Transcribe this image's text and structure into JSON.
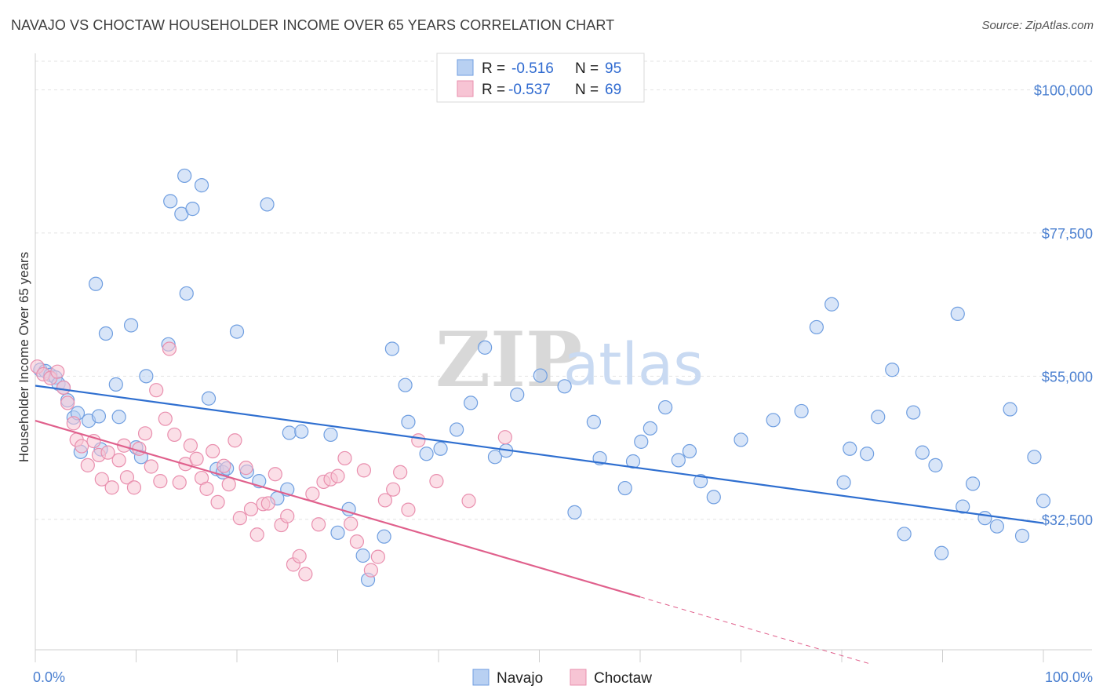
{
  "title": "NAVAJO VS CHOCTAW HOUSEHOLDER INCOME OVER 65 YEARS CORRELATION CHART",
  "source": "Source: ZipAtlas.com",
  "watermark": {
    "zip": "ZIP",
    "atlas": "atlas"
  },
  "colors": {
    "navajo_fill": "#b8d0f2",
    "navajo_stroke": "#6f9ee0",
    "navajo_line": "#2f6fd0",
    "choctaw_fill": "#f7c4d4",
    "choctaw_stroke": "#e98fae",
    "choctaw_line": "#e0608c"
  },
  "legend": {
    "rows": [
      {
        "r_label": "R =",
        "r_value": "-0.516",
        "n_label": "N =",
        "n_value": "95"
      },
      {
        "r_label": "R =",
        "r_value": "-0.537",
        "n_label": "N =",
        "n_value": "69"
      }
    ]
  },
  "bottom_legend": [
    "Navajo",
    "Choctaw"
  ],
  "chart_data": {
    "type": "scatter",
    "title": "NAVAJO VS CHOCTAW HOUSEHOLDER INCOME OVER 65 YEARS CORRELATION CHART",
    "xlabel": "",
    "ylabel": "Householder Income Over 65 years",
    "xlim": [
      0,
      100
    ],
    "ylim": [
      12000,
      104500
    ],
    "x_tick_labels": [
      "0.0%",
      "100.0%"
    ],
    "y_ticks": [
      32500,
      55000,
      77500,
      100000
    ],
    "y_tick_labels": [
      "$32,500",
      "$55,000",
      "$77,500",
      "$100,000"
    ],
    "grid": true,
    "legend_placement": "top-center",
    "series": [
      {
        "name": "Navajo",
        "points": [
          [
            0.5,
            56000
          ],
          [
            1.0,
            55800
          ],
          [
            1.5,
            55200
          ],
          [
            2.0,
            54800
          ],
          [
            2.3,
            53800
          ],
          [
            2.8,
            53200
          ],
          [
            3.2,
            51200
          ],
          [
            3.8,
            48500
          ],
          [
            4.2,
            49200
          ],
          [
            5.3,
            48000
          ],
          [
            4.5,
            43100
          ],
          [
            6.0,
            69500
          ],
          [
            6.3,
            48700
          ],
          [
            7.0,
            61700
          ],
          [
            8.3,
            48600
          ],
          [
            8.0,
            53700
          ],
          [
            6.5,
            43500
          ],
          [
            9.5,
            63000
          ],
          [
            10.0,
            43800
          ],
          [
            10.5,
            42300
          ],
          [
            11.0,
            55000
          ],
          [
            13.2,
            60000
          ],
          [
            13.4,
            82500
          ],
          [
            14.5,
            80500
          ],
          [
            14.8,
            86500
          ],
          [
            15.0,
            68000
          ],
          [
            15.6,
            81300
          ],
          [
            16.5,
            85000
          ],
          [
            17.2,
            51500
          ],
          [
            18.0,
            40400
          ],
          [
            18.6,
            39900
          ],
          [
            19.0,
            40500
          ],
          [
            20.0,
            62000
          ],
          [
            21.0,
            40000
          ],
          [
            22.2,
            38500
          ],
          [
            23.0,
            82000
          ],
          [
            24.0,
            35800
          ],
          [
            25.2,
            46100
          ],
          [
            25.0,
            37200
          ],
          [
            26.4,
            46300
          ],
          [
            29.3,
            45800
          ],
          [
            30.0,
            30400
          ],
          [
            31.1,
            34100
          ],
          [
            32.5,
            26800
          ],
          [
            33.0,
            23000
          ],
          [
            34.6,
            29800
          ],
          [
            35.4,
            59300
          ],
          [
            36.7,
            53600
          ],
          [
            37.0,
            47800
          ],
          [
            38.8,
            42800
          ],
          [
            40.2,
            43600
          ],
          [
            41.8,
            46600
          ],
          [
            43.2,
            50800
          ],
          [
            44.6,
            59500
          ],
          [
            45.6,
            42300
          ],
          [
            46.7,
            43300
          ],
          [
            47.8,
            52100
          ],
          [
            50.1,
            55100
          ],
          [
            52.5,
            53400
          ],
          [
            53.5,
            33600
          ],
          [
            55.4,
            47800
          ],
          [
            56.0,
            42100
          ],
          [
            58.5,
            37400
          ],
          [
            59.3,
            41600
          ],
          [
            60.1,
            44700
          ],
          [
            61.0,
            46800
          ],
          [
            62.5,
            50100
          ],
          [
            63.8,
            41800
          ],
          [
            64.9,
            43200
          ],
          [
            66.0,
            38500
          ],
          [
            67.3,
            36000
          ],
          [
            70.0,
            45000
          ],
          [
            73.2,
            48100
          ],
          [
            76.0,
            49500
          ],
          [
            77.5,
            62700
          ],
          [
            79.0,
            66300
          ],
          [
            80.2,
            38300
          ],
          [
            80.8,
            43600
          ],
          [
            82.5,
            42800
          ],
          [
            83.6,
            48600
          ],
          [
            85.0,
            56000
          ],
          [
            86.2,
            30200
          ],
          [
            87.1,
            49300
          ],
          [
            88.0,
            43000
          ],
          [
            89.3,
            41000
          ],
          [
            89.9,
            27200
          ],
          [
            91.5,
            64800
          ],
          [
            92.0,
            34500
          ],
          [
            93.0,
            38100
          ],
          [
            94.2,
            32700
          ],
          [
            95.4,
            31400
          ],
          [
            96.7,
            49800
          ],
          [
            97.9,
            29900
          ],
          [
            99.1,
            42300
          ],
          [
            100.0,
            35400
          ]
        ]
      },
      {
        "name": "Choctaw",
        "points": [
          [
            0.2,
            56500
          ],
          [
            0.8,
            55300
          ],
          [
            1.5,
            54700
          ],
          [
            2.2,
            55700
          ],
          [
            2.8,
            53200
          ],
          [
            3.2,
            50800
          ],
          [
            3.8,
            47600
          ],
          [
            4.1,
            45000
          ],
          [
            4.6,
            44000
          ],
          [
            5.2,
            41000
          ],
          [
            5.8,
            44800
          ],
          [
            6.3,
            42600
          ],
          [
            6.6,
            38800
          ],
          [
            7.2,
            43000
          ],
          [
            7.6,
            37500
          ],
          [
            8.3,
            41800
          ],
          [
            8.8,
            44100
          ],
          [
            9.1,
            39100
          ],
          [
            9.8,
            37500
          ],
          [
            10.3,
            43600
          ],
          [
            10.9,
            46000
          ],
          [
            11.5,
            40800
          ],
          [
            12.0,
            52800
          ],
          [
            12.4,
            38500
          ],
          [
            12.9,
            48300
          ],
          [
            13.3,
            59300
          ],
          [
            13.8,
            45800
          ],
          [
            14.3,
            38300
          ],
          [
            14.9,
            41200
          ],
          [
            15.4,
            44100
          ],
          [
            16.0,
            42000
          ],
          [
            16.5,
            39000
          ],
          [
            17.0,
            37300
          ],
          [
            17.6,
            43200
          ],
          [
            18.1,
            35200
          ],
          [
            18.7,
            40900
          ],
          [
            19.2,
            38000
          ],
          [
            19.8,
            44900
          ],
          [
            20.3,
            32700
          ],
          [
            20.9,
            40600
          ],
          [
            21.4,
            34100
          ],
          [
            22.0,
            30100
          ],
          [
            22.6,
            34900
          ],
          [
            23.1,
            35000
          ],
          [
            23.8,
            39600
          ],
          [
            24.4,
            31600
          ],
          [
            25.0,
            33000
          ],
          [
            25.6,
            25400
          ],
          [
            26.2,
            26700
          ],
          [
            26.8,
            23900
          ],
          [
            27.5,
            36500
          ],
          [
            28.1,
            31700
          ],
          [
            28.6,
            38400
          ],
          [
            29.3,
            38800
          ],
          [
            30.0,
            39300
          ],
          [
            30.7,
            42100
          ],
          [
            31.3,
            31800
          ],
          [
            31.9,
            29000
          ],
          [
            32.6,
            40200
          ],
          [
            33.3,
            24500
          ],
          [
            34.0,
            26600
          ],
          [
            34.7,
            35500
          ],
          [
            35.5,
            37200
          ],
          [
            36.2,
            39900
          ],
          [
            37.0,
            34000
          ],
          [
            38.0,
            44900
          ],
          [
            39.8,
            38500
          ],
          [
            43.0,
            35400
          ],
          [
            46.6,
            45400
          ]
        ]
      }
    ],
    "trendlines": [
      {
        "series": "Navajo",
        "x": [
          0,
          100
        ],
        "y": [
          53500,
          31900
        ],
        "style": "solid"
      },
      {
        "series": "Choctaw",
        "x": [
          0,
          60
        ],
        "y": [
          48000,
          20300
        ],
        "style": "solid"
      },
      {
        "series": "Choctaw",
        "x": [
          60,
          83
        ],
        "y": [
          20300,
          9700
        ],
        "style": "dashed"
      }
    ]
  }
}
